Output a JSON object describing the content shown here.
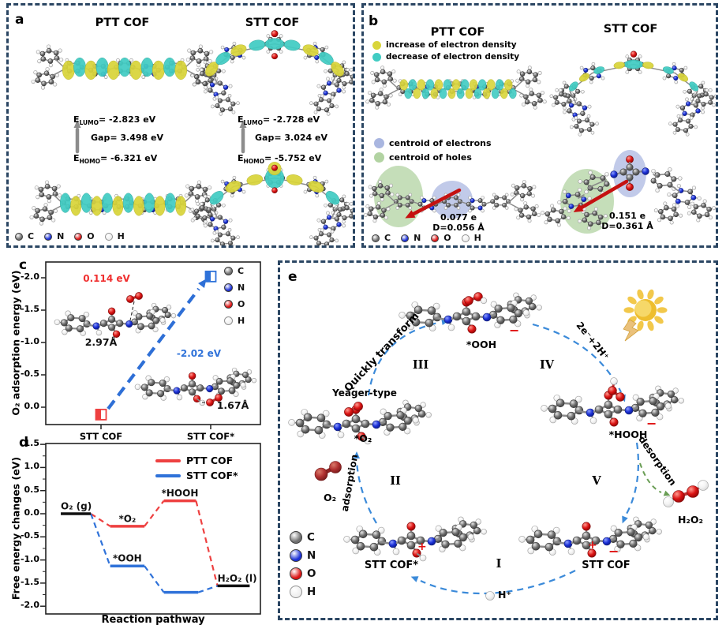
{
  "colors": {
    "border_navy": "#2b4663",
    "plot_red": "#ee4040",
    "plot_blue": "#2f72d9",
    "dash_blue": "#3b8ad9",
    "arrow_red": "#c51111",
    "gray_arrow": "#8c8c8c",
    "yellow_blob": "#d9d53a",
    "cyan_blob": "#41ccc3",
    "centroid_electron": "#a9b6e0",
    "centroid_hole": "#b2d3a2",
    "desorption_green": "#6a9e55",
    "atom_c": "#6f6f6f",
    "atom_n": "#1a2fd6",
    "atom_o": "#dc1414",
    "atom_h": "#ffffff",
    "o2_dark_red": "#b03030",
    "sun_yellow": "#eebe2e"
  },
  "atom_legend": [
    {
      "symbol": "C",
      "color": "#6f6f6f"
    },
    {
      "symbol": "N",
      "color": "#1a2fd6"
    },
    {
      "symbol": "O",
      "color": "#dc1414"
    },
    {
      "symbol": "H",
      "color": "#ffffff"
    }
  ],
  "panel_a": {
    "label": "a",
    "e_symbol": "E",
    "left": {
      "title": "PTT COF",
      "lumo_sub": "LUMO",
      "lumo_value": "= -2.823 eV",
      "gap": "Gap= 3.498 eV",
      "homo_sub": "HOMO",
      "homo_value": "= -6.321 eV"
    },
    "right": {
      "title": "STT COF",
      "lumo_sub": "LUMO",
      "lumo_value": "= -2.728 eV",
      "gap": "Gap= 3.024 eV",
      "homo_sub": "HOMO",
      "homo_value": "= -5.752 eV"
    }
  },
  "panel_b": {
    "label": "b",
    "left_title": "PTT COF",
    "right_title": "STT COF",
    "density_legend": [
      {
        "label": "increase of electron density",
        "color": "#d9d53a"
      },
      {
        "label": "decrease of electron density",
        "color": "#41ccc3"
      }
    ],
    "centroid_legend": [
      {
        "label": "centroid of electrons",
        "color": "#a9b6e0"
      },
      {
        "label": "centroid of holes",
        "color": "#b2d3a2"
      }
    ],
    "left_charge": "0.077 e",
    "left_distance": "D=0.056 Å",
    "right_charge": "0.151 e",
    "right_distance": "D=0.361 Å"
  },
  "panel_c": {
    "label": "c",
    "ylabel": "O₂ adsorption energy (eV)",
    "ann_energy_1": "0.114 eV",
    "ann_dist_1": "2.97Å",
    "ann_energy_2": "-2.02 eV",
    "ann_dist_2": "1.67Å",
    "chart_data": {
      "type": "scatter",
      "categories": [
        "STT COF",
        "STT COF*"
      ],
      "values": [
        0.114,
        -2.02
      ],
      "marker_colors": [
        "#ee4040",
        "#2f72d9"
      ],
      "ylabel": "O₂ adsorption energy (eV)",
      "yticks": [
        -2.0,
        -1.5,
        -1.0,
        -0.5,
        0.0
      ],
      "ylim": [
        0.35,
        -2.3
      ],
      "axis_inverted": true,
      "annotation_note": "dashed blue arrow from STT COF point to STT COF* point"
    }
  },
  "panel_d": {
    "label": "d",
    "ylabel": "Free energy changes (eV)",
    "xlabel": "Reaction pathway",
    "chart_data": {
      "type": "energy-diagram",
      "yticks": [
        1.5,
        1.0,
        0.5,
        0.0,
        -0.5,
        -1.0,
        -1.5,
        -2.0
      ],
      "ylim": [
        -2.0,
        1.5
      ],
      "legend": [
        {
          "name": "PTT COF",
          "color": "#ee4040"
        },
        {
          "name": "STT COF*",
          "color": "#2f72d9"
        }
      ],
      "levels": [
        {
          "label": "O₂ (g)",
          "value": 0.0,
          "x": [
            0.07,
            0.21
          ],
          "series": "shared",
          "color": "#111111",
          "anchor": "start"
        },
        {
          "label": "*O₂",
          "value": -0.27,
          "x": [
            0.3,
            0.46
          ],
          "series": "PTT COF",
          "color": "#ee4040",
          "anchor": "middle"
        },
        {
          "label": "*HOOH",
          "value": 0.28,
          "x": [
            0.55,
            0.7
          ],
          "series": "PTT COF",
          "color": "#ee4040",
          "anchor": "middle"
        },
        {
          "label": "*OOH",
          "value": -1.13,
          "x": [
            0.3,
            0.46
          ],
          "series": "STT COF*",
          "color": "#2f72d9",
          "anchor": "middle"
        },
        {
          "label": "",
          "value": -1.7,
          "x": [
            0.55,
            0.71
          ],
          "series": "STT COF*",
          "color": "#2f72d9",
          "anchor": "middle"
        },
        {
          "label": "H₂O₂ (l)",
          "value": -1.56,
          "x": [
            0.8,
            0.95
          ],
          "series": "shared",
          "color": "#111111",
          "anchor": "start"
        }
      ],
      "connectors": [
        {
          "from": [
            0.21,
            0.0
          ],
          "to": [
            0.3,
            -0.27
          ],
          "color": "#ee4040"
        },
        {
          "from": [
            0.46,
            -0.27
          ],
          "to": [
            0.55,
            0.28
          ],
          "color": "#ee4040"
        },
        {
          "from": [
            0.7,
            0.28
          ],
          "to": [
            0.8,
            -1.56
          ],
          "color": "#ee4040"
        },
        {
          "from": [
            0.21,
            0.0
          ],
          "to": [
            0.3,
            -1.13
          ],
          "color": "#2f72d9"
        },
        {
          "from": [
            0.46,
            -1.13
          ],
          "to": [
            0.55,
            -1.7
          ],
          "color": "#2f72d9"
        },
        {
          "from": [
            0.71,
            -1.7
          ],
          "to": [
            0.8,
            -1.56
          ],
          "color": "#2f72d9"
        }
      ]
    }
  },
  "panel_e": {
    "label": "e",
    "stage_1": "I",
    "stage_2": "II",
    "stage_3": "III",
    "stage_4": "IV",
    "stage_5": "V",
    "yeager": "Yeager-type",
    "o2_ads": "*O₂",
    "ooh": "*OOH",
    "hooh": "*HOOH",
    "stt_cof": "STT COF",
    "stt_cof_star": "STT COF*",
    "o2": "O₂",
    "h2o2": "H₂O₂",
    "h_plus": "H⁺",
    "quickly_transform": "Quickly transform",
    "electrons": "2e⁻+2H⁺",
    "adsorption": "adsorption",
    "desorption": "desorption",
    "charge_plus": "+",
    "charge_minus": "−"
  }
}
